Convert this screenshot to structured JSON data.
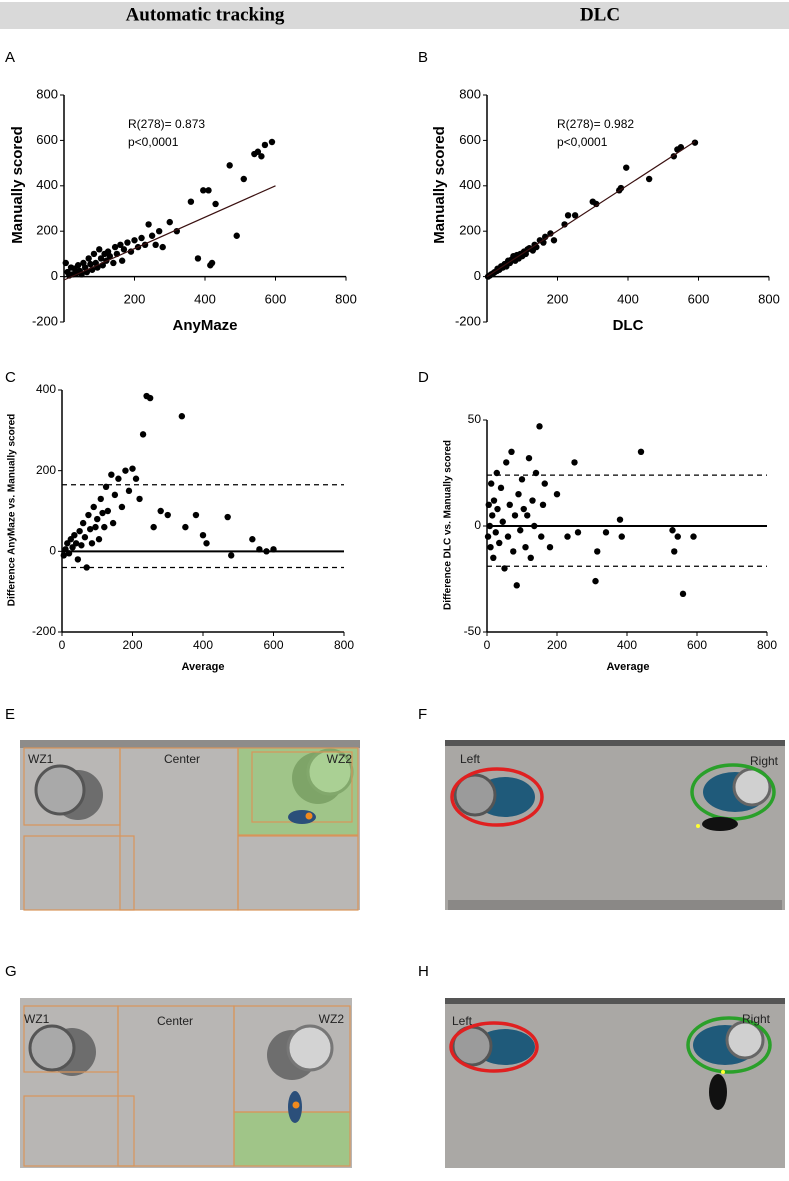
{
  "header": [
    "Automatic tracking",
    "DLC"
  ],
  "panels": [
    "A",
    "B",
    "C",
    "D",
    "E",
    "F",
    "G",
    "H"
  ],
  "photos": [
    {
      "labels": [
        "WZ1",
        "Center",
        "WZ2"
      ]
    },
    {
      "labels": [
        "Left",
        "Right"
      ]
    },
    {
      "labels": [
        "WZ1",
        "Center",
        "WZ2"
      ]
    },
    {
      "labels": [
        "Left",
        "Right"
      ]
    }
  ],
  "chart_data": [
    {
      "type": "scatter",
      "xlabel": "AnyMaze",
      "ylabel": "Manually scored",
      "annotations": [
        "R(278)= 0.873",
        "p<0,0001"
      ],
      "color": "#000000",
      "xlim": [
        0,
        800
      ],
      "ylim": [
        -200,
        800
      ],
      "xticks": [
        200,
        400,
        600,
        800
      ],
      "yticks": [
        -200,
        0,
        200,
        400,
        600,
        800
      ],
      "x": [
        5,
        10,
        15,
        20,
        25,
        30,
        35,
        40,
        45,
        50,
        55,
        60,
        65,
        70,
        75,
        80,
        85,
        90,
        95,
        100,
        105,
        110,
        115,
        120,
        125,
        130,
        140,
        145,
        150,
        160,
        165,
        170,
        180,
        190,
        200,
        210,
        220,
        230,
        240,
        250,
        260,
        270,
        280,
        300,
        320,
        360,
        380,
        395,
        410,
        415,
        420,
        430,
        470,
        490,
        510,
        540,
        550,
        560,
        570,
        590
      ],
      "values": [
        60,
        20,
        5,
        40,
        10,
        35,
        15,
        50,
        25,
        10,
        60,
        40,
        20,
        80,
        55,
        30,
        100,
        60,
        40,
        120,
        80,
        50,
        100,
        70,
        110,
        90,
        60,
        130,
        100,
        140,
        70,
        120,
        150,
        110,
        160,
        130,
        170,
        140,
        230,
        180,
        140,
        200,
        130,
        240,
        200,
        330,
        80,
        380,
        380,
        50,
        60,
        320,
        490,
        180,
        430,
        540,
        550,
        530,
        580,
        593
      ],
      "fit": {
        "x": [
          0,
          600
        ],
        "y": [
          -15,
          400
        ],
        "color": "#3a1010"
      }
    },
    {
      "type": "scatter",
      "xlabel": "DLC",
      "ylabel": "Manually scored",
      "annotations": [
        "R(278)= 0.982",
        "p<0,0001"
      ],
      "color": "#000000",
      "xlim": [
        0,
        800
      ],
      "ylim": [
        -200,
        800
      ],
      "xticks": [
        200,
        400,
        600,
        800
      ],
      "yticks": [
        -200,
        0,
        200,
        400,
        600,
        800
      ],
      "x": [
        3,
        8,
        12,
        18,
        22,
        28,
        30,
        35,
        40,
        45,
        50,
        55,
        60,
        65,
        70,
        75,
        80,
        85,
        90,
        95,
        100,
        105,
        110,
        115,
        120,
        130,
        135,
        140,
        150,
        160,
        165,
        180,
        190,
        220,
        230,
        250,
        300,
        310,
        375,
        380,
        395,
        460,
        530,
        540,
        550,
        590
      ],
      "values": [
        0,
        5,
        10,
        15,
        20,
        25,
        35,
        30,
        45,
        40,
        55,
        45,
        70,
        60,
        75,
        90,
        70,
        95,
        80,
        100,
        90,
        110,
        100,
        120,
        125,
        115,
        140,
        130,
        160,
        150,
        175,
        190,
        160,
        230,
        270,
        270,
        330,
        320,
        380,
        390,
        480,
        430,
        530,
        560,
        570,
        590
      ],
      "fit": {
        "x": [
          0,
          590
        ],
        "y": [
          0,
          595
        ],
        "color": "#3a1010"
      }
    },
    {
      "type": "scatter",
      "xlabel": "Average",
      "ylabel": "Difference AnyMaze vs. Manually scored",
      "color": "#000000",
      "xlim": [
        0,
        800
      ],
      "ylim": [
        -200,
        400
      ],
      "xticks": [
        0,
        200,
        400,
        600,
        800
      ],
      "yticks": [
        -200,
        0,
        200,
        400
      ],
      "x": [
        5,
        10,
        15,
        20,
        25,
        30,
        35,
        40,
        45,
        50,
        55,
        60,
        65,
        70,
        75,
        80,
        85,
        90,
        95,
        100,
        105,
        110,
        115,
        120,
        125,
        130,
        140,
        145,
        150,
        160,
        170,
        180,
        190,
        200,
        210,
        220,
        230,
        240,
        250,
        260,
        280,
        300,
        340,
        350,
        380,
        400,
        410,
        470,
        480,
        540,
        560,
        580,
        600
      ],
      "values": [
        -10,
        5,
        20,
        -5,
        30,
        10,
        40,
        20,
        -20,
        50,
        15,
        70,
        35,
        -40,
        90,
        55,
        20,
        110,
        60,
        80,
        30,
        130,
        95,
        60,
        160,
        100,
        190,
        70,
        140,
        180,
        110,
        200,
        150,
        205,
        180,
        130,
        290,
        385,
        380,
        60,
        100,
        90,
        335,
        60,
        90,
        40,
        20,
        85,
        -10,
        30,
        5,
        0,
        5
      ],
      "hlines": [
        {
          "value": 0,
          "style": "solid"
        },
        {
          "value": 165,
          "style": "dashed"
        },
        {
          "value": -40,
          "style": "dashed"
        }
      ]
    },
    {
      "type": "scatter",
      "xlabel": "Average",
      "ylabel": "Difference DLC vs. Manually scored",
      "color": "#000000",
      "xlim": [
        0,
        800
      ],
      "ylim": [
        -50,
        50
      ],
      "xticks": [
        0,
        200,
        400,
        600,
        800
      ],
      "yticks": [
        -50,
        0,
        50
      ],
      "x": [
        3,
        5,
        8,
        10,
        12,
        15,
        18,
        20,
        25,
        28,
        30,
        35,
        40,
        45,
        50,
        55,
        60,
        65,
        70,
        75,
        80,
        85,
        90,
        95,
        100,
        105,
        110,
        115,
        120,
        125,
        130,
        135,
        140,
        150,
        155,
        160,
        165,
        180,
        200,
        230,
        250,
        260,
        310,
        315,
        340,
        380,
        385,
        440,
        530,
        535,
        545,
        560,
        590
      ],
      "values": [
        -5,
        10,
        0,
        -10,
        20,
        5,
        -15,
        12,
        -3,
        25,
        8,
        -8,
        18,
        2,
        -20,
        30,
        -5,
        10,
        35,
        -12,
        5,
        -28,
        15,
        -2,
        22,
        8,
        -10,
        5,
        32,
        -15,
        12,
        0,
        25,
        47,
        -5,
        10,
        20,
        -10,
        15,
        -5,
        30,
        -3,
        -26,
        -12,
        -3,
        3,
        -5,
        35,
        -2,
        -12,
        -5,
        -32,
        -5
      ],
      "hlines": [
        {
          "value": 0,
          "style": "solid"
        },
        {
          "value": 24,
          "style": "dashed"
        },
        {
          "value": -19,
          "style": "dashed"
        }
      ]
    }
  ]
}
